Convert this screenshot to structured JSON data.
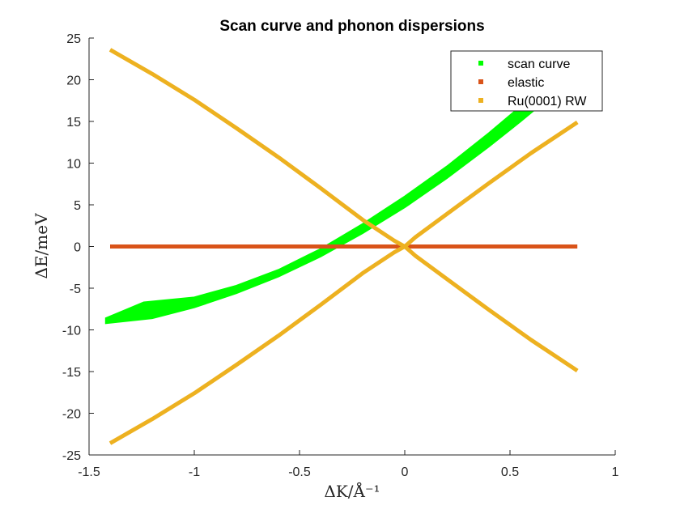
{
  "chart_data": {
    "type": "line",
    "title": "Scan curve and phonon dispersions",
    "xlabel": "ΔK/Å⁻¹",
    "ylabel": "ΔE/meV",
    "xlim": [
      -1.5,
      1
    ],
    "ylim": [
      -25,
      25
    ],
    "xticks": [
      "-1.5",
      "-1",
      "-0.5",
      "0",
      "0.5",
      "1"
    ],
    "yticks": [
      "-25",
      "-20",
      "-15",
      "-10",
      "-5",
      "0",
      "5",
      "10",
      "15",
      "20",
      "25"
    ],
    "grid": false,
    "legend_position": "top-right",
    "legend": [
      "scan curve",
      "elastic",
      "Ru(0001) RW"
    ],
    "colors": {
      "scan_curve": "#00ff00",
      "elastic": "#d95319",
      "rw": "#edb120"
    },
    "scan_curve": {
      "lower": [
        [
          -1.42,
          -9.2
        ],
        [
          -1.2,
          -8.6
        ],
        [
          -1.0,
          -7.3
        ],
        [
          -0.8,
          -5.6
        ],
        [
          -0.6,
          -3.6
        ],
        [
          -0.4,
          -1.2
        ],
        [
          -0.2,
          1.6
        ],
        [
          0.0,
          4.7
        ],
        [
          0.2,
          8.2
        ],
        [
          0.4,
          12.0
        ],
        [
          0.55,
          15.0
        ],
        [
          0.66,
          17.3
        ]
      ],
      "upper": [
        [
          -1.42,
          -8.6
        ],
        [
          -1.24,
          -6.7
        ],
        [
          -1.0,
          -6.1
        ],
        [
          -0.8,
          -4.7
        ],
        [
          -0.6,
          -2.8
        ],
        [
          -0.4,
          -0.3
        ],
        [
          -0.2,
          2.7
        ],
        [
          0.0,
          6.0
        ],
        [
          0.2,
          9.6
        ],
        [
          0.4,
          13.6
        ],
        [
          0.55,
          16.8
        ],
        [
          0.62,
          18.4
        ]
      ]
    },
    "series": [
      {
        "name": "elastic",
        "x": [
          -1.4,
          0.82
        ],
        "y": [
          0,
          0
        ]
      },
      {
        "name": "Ru(0001) RW",
        "x": [
          -1.4,
          -1.2,
          -1.0,
          -0.8,
          -0.6,
          -0.4,
          -0.2,
          -0.05,
          0
        ],
        "y": [
          23.6,
          20.7,
          17.6,
          14.2,
          10.7,
          7.0,
          3.2,
          0.7,
          0
        ]
      },
      {
        "name": "Ru(0001) RW",
        "x": [
          0,
          0.05,
          0.2,
          0.4,
          0.6,
          0.82
        ],
        "y": [
          0,
          -1.1,
          -3.9,
          -7.6,
          -11.2,
          -14.9
        ]
      },
      {
        "name": "Ru(0001) RW",
        "x": [
          -1.4,
          -1.2,
          -1.0,
          -0.8,
          -0.6,
          -0.4,
          -0.2,
          -0.05,
          0
        ],
        "y": [
          -23.6,
          -20.7,
          -17.6,
          -14.2,
          -10.7,
          -7.0,
          -3.2,
          -0.7,
          0
        ]
      },
      {
        "name": "Ru(0001) RW",
        "x": [
          0,
          0.05,
          0.2,
          0.4,
          0.6,
          0.82
        ],
        "y": [
          0,
          1.1,
          3.9,
          7.6,
          11.2,
          14.9
        ]
      }
    ]
  }
}
